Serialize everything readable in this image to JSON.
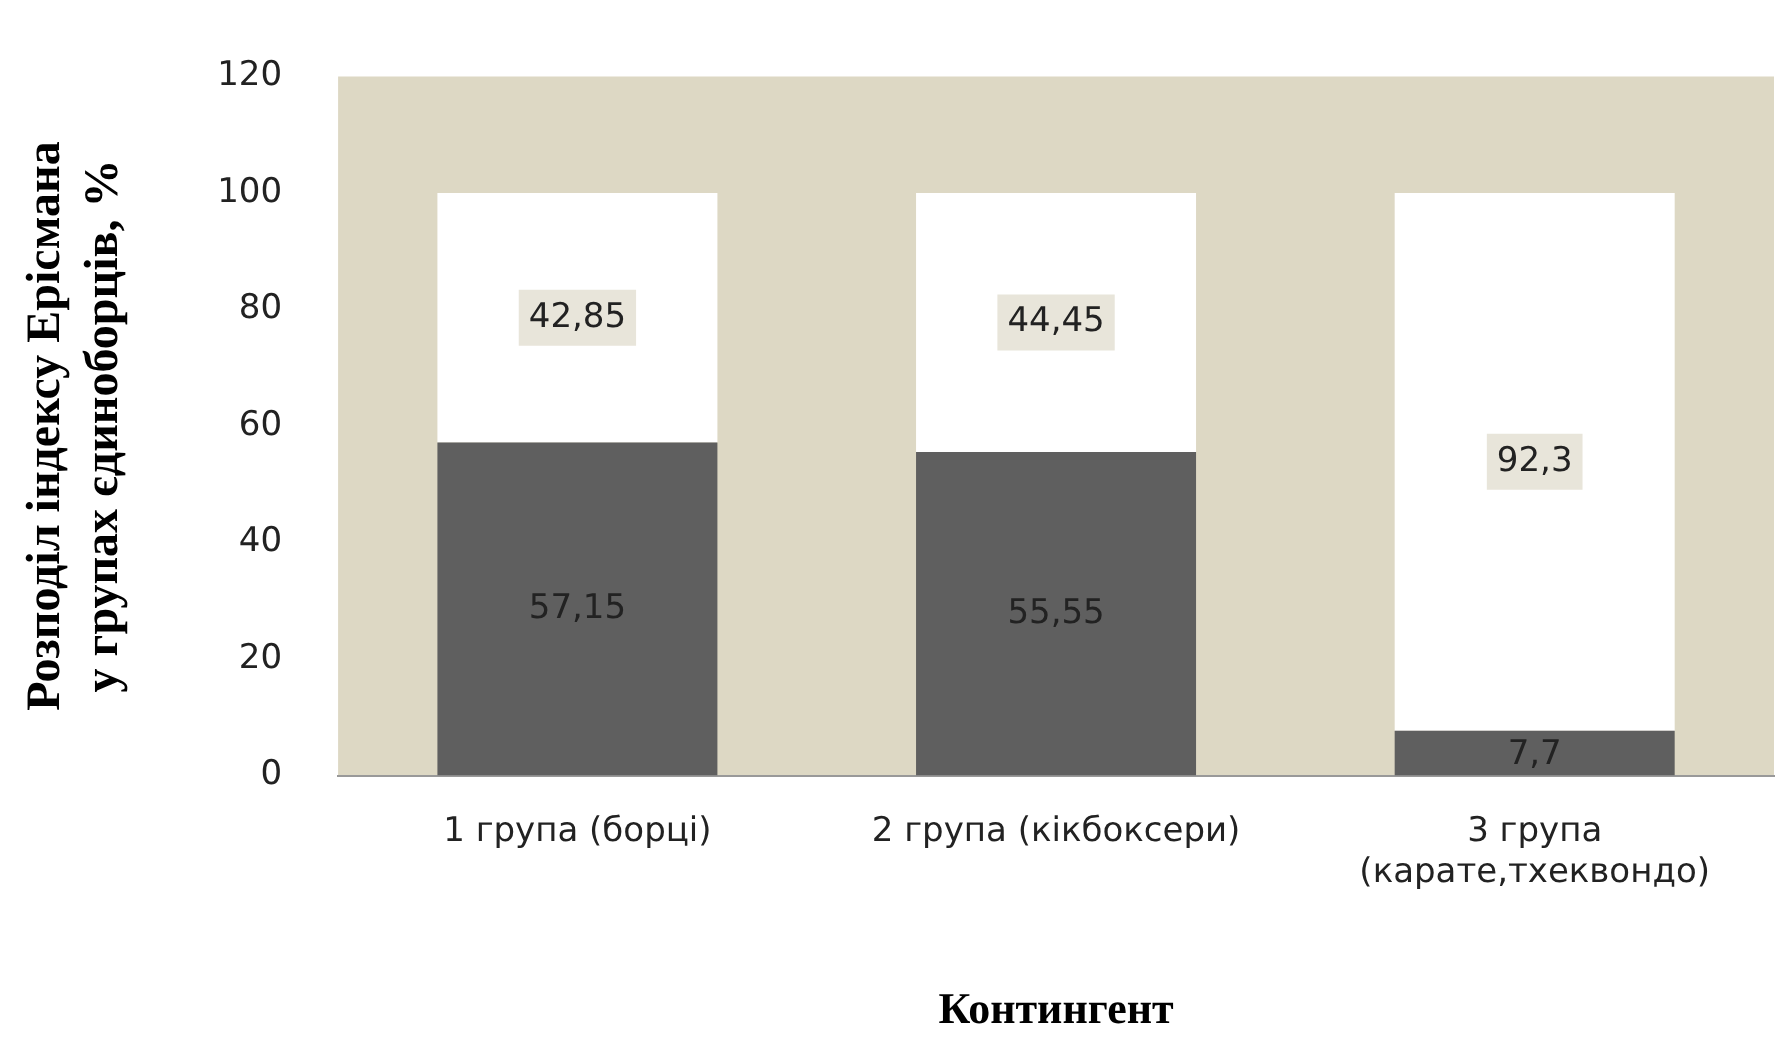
{
  "chart_data": {
    "type": "bar",
    "stacked": true,
    "xlabel": "Контингент",
    "ylabel": "Розподіл індексу Ерісмана у групах єдиноборців, %",
    "categories": [
      "1 група (борці)",
      "2 група (кікбоксери)",
      "3 група (карате,тхеквондо)"
    ],
    "series": [
      {
        "color": "#5f5f5f",
        "values": [
          57.15,
          55.55,
          7.7
        ],
        "value_labels": [
          "57,15",
          "55,55",
          "7,7"
        ]
      },
      {
        "color": "#ffffff",
        "values": [
          42.85,
          44.45,
          92.3
        ],
        "value_labels": [
          "42,85",
          "44,45",
          "92,3"
        ]
      }
    ],
    "ylim": [
      0,
      120
    ],
    "yticks": [
      0,
      20,
      40,
      60,
      80,
      100,
      120
    ],
    "grid": false,
    "legend": false
  }
}
